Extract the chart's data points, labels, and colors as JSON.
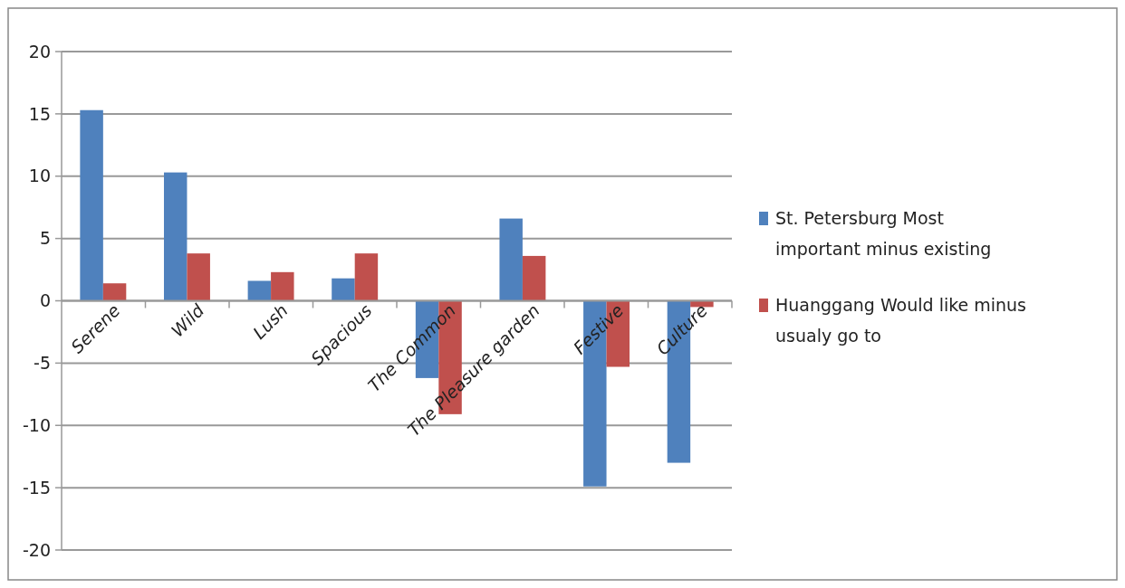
{
  "chart_data": {
    "type": "bar",
    "categories": [
      "Serene",
      "Wild",
      "Lush",
      "Spacious",
      "The Common",
      "The Pleasure garden",
      "Festive",
      "Culture"
    ],
    "series": [
      {
        "name": "St. Petersburg Most important minus existing",
        "color": "#4f81bd",
        "values": [
          15.3,
          10.3,
          1.6,
          1.8,
          -6.2,
          6.6,
          -14.9,
          -13
        ]
      },
      {
        "name": "Huanggang Would like minus usualy go to",
        "color": "#c0504d",
        "values": [
          1.4,
          3.8,
          2.3,
          3.8,
          -9.1,
          3.6,
          -5.3,
          -0.5
        ]
      }
    ],
    "ylim": [
      -20,
      20
    ],
    "yticks": [
      -20,
      -15,
      -10,
      -5,
      0,
      5,
      10,
      15,
      20
    ],
    "grid": "y",
    "legend": "right"
  }
}
